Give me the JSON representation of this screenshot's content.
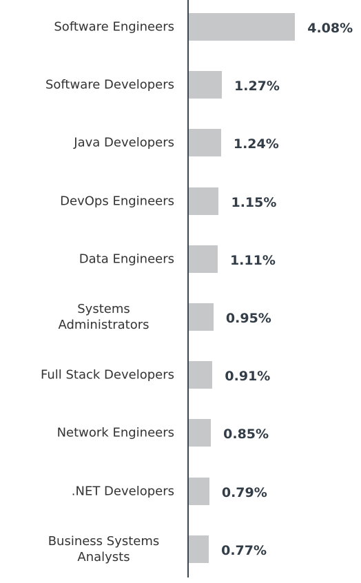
{
  "chart_data": {
    "type": "bar",
    "orientation": "horizontal",
    "categories": [
      "Software Engineers",
      "Software Developers",
      "Java Developers",
      "DevOps Engineers",
      "Data Engineers",
      "Systems Administrators",
      "Full Stack Developers",
      "Network Engineers",
      ".NET Developers",
      "Business Systems Analysts"
    ],
    "values": [
      4.08,
      1.27,
      1.24,
      1.15,
      1.11,
      0.95,
      0.91,
      0.85,
      0.79,
      0.77
    ],
    "value_labels": [
      "4.08%",
      "1.27%",
      "1.24%",
      "1.15%",
      "1.11%",
      "0.95%",
      "0.91%",
      "0.85%",
      "0.79%",
      "0.77%"
    ],
    "color": "#c5c7c9"
  }
}
